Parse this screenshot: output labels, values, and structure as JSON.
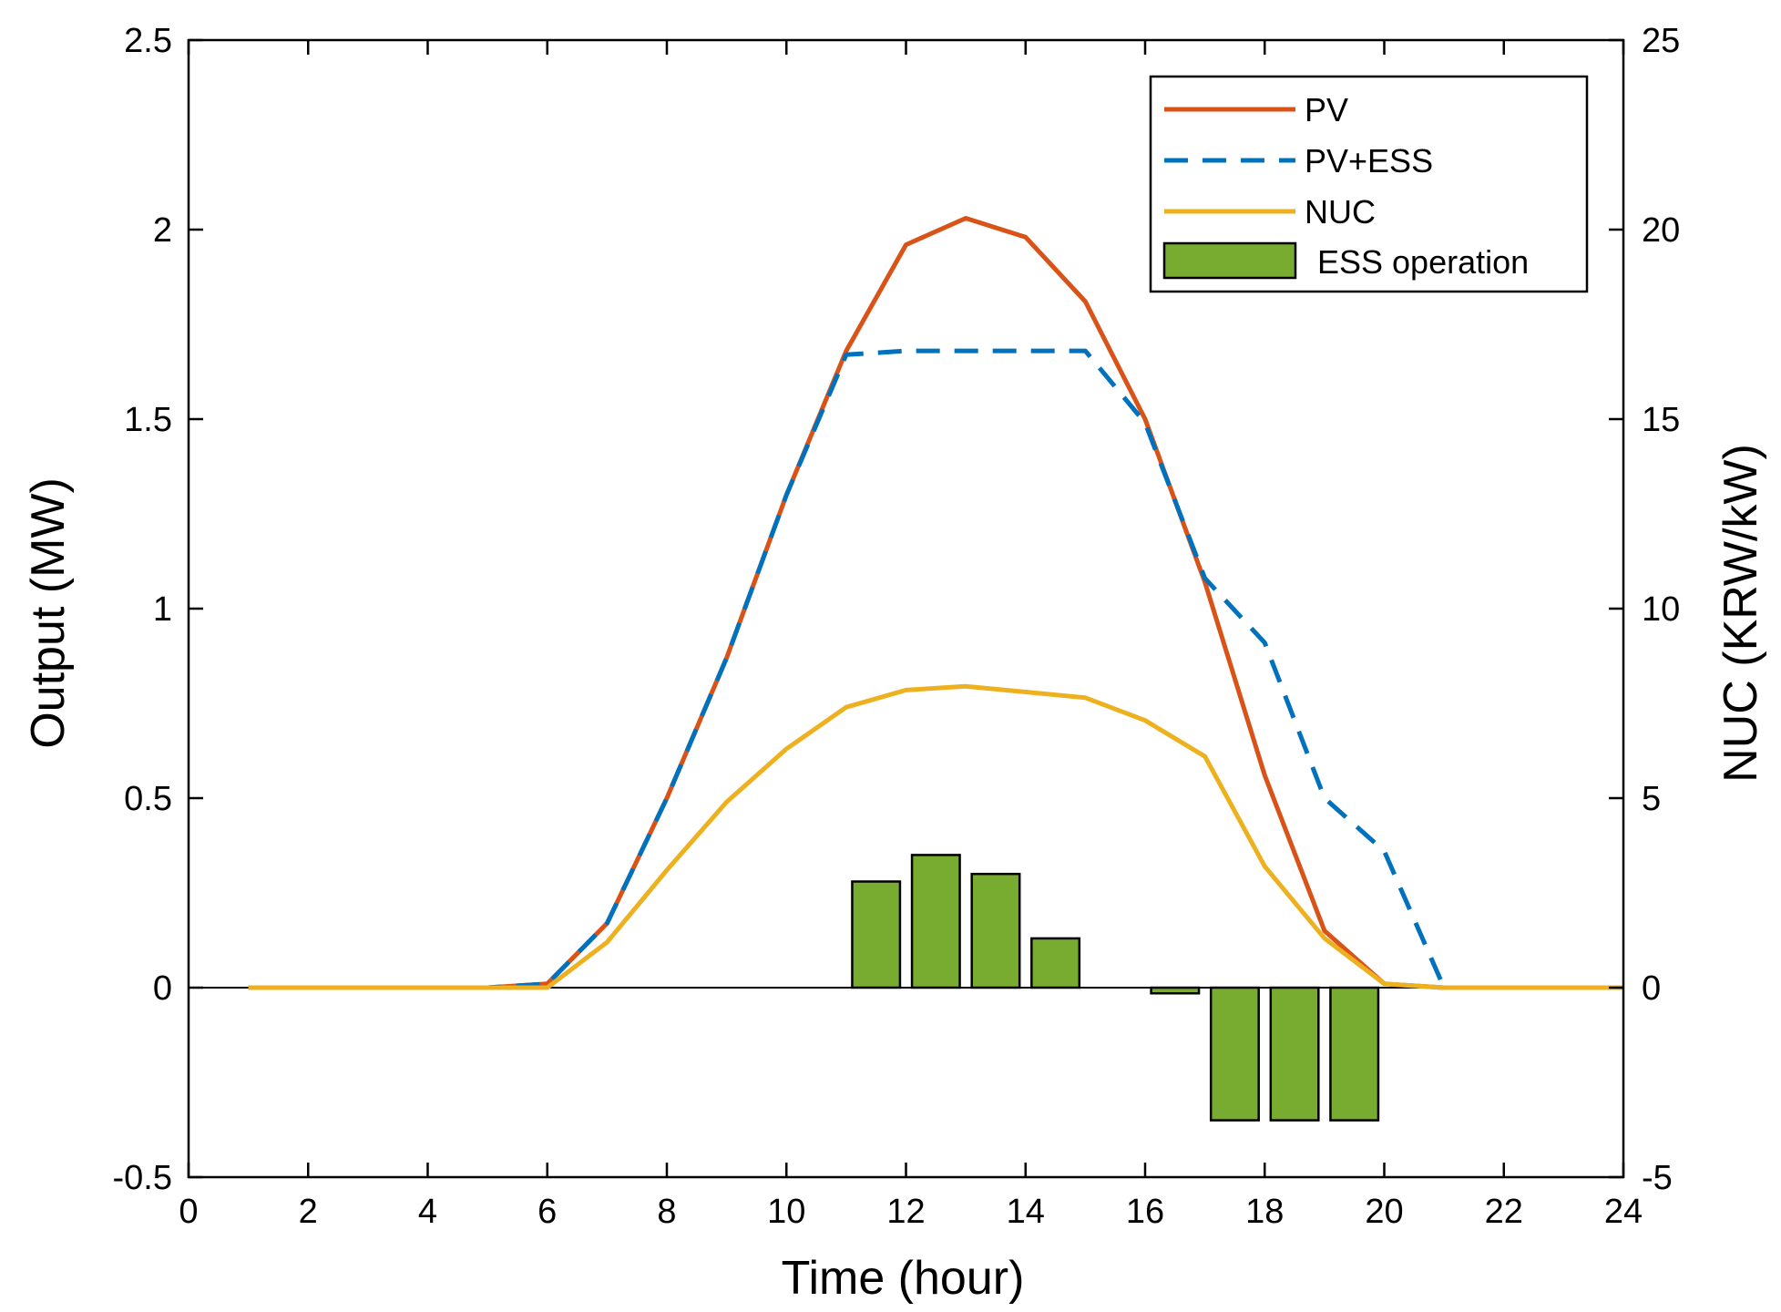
{
  "chart_data": {
    "type": "line",
    "xlabel": "Time (hour)",
    "ylabel_left": "Output (MW)",
    "ylabel_right": "NUC (KRW/kW)",
    "xlim": [
      0,
      24
    ],
    "ylim_left": [
      -0.5,
      2.5
    ],
    "ylim_right": [
      -5,
      25
    ],
    "xticks": [
      "0",
      "2",
      "4",
      "6",
      "8",
      "10",
      "12",
      "14",
      "16",
      "18",
      "20",
      "22",
      "24"
    ],
    "yticks_left": [
      "-0.5",
      "0",
      "0.5",
      "1",
      "1.5",
      "2",
      "2.5"
    ],
    "yticks_right": [
      "-5",
      "0",
      "5",
      "10",
      "15",
      "20",
      "25"
    ],
    "legend_position": "top-right",
    "series": [
      {
        "name": "PV",
        "axis": "left",
        "style": "solid",
        "color": "#D95319",
        "x": [
          1,
          2,
          3,
          4,
          5,
          6,
          7,
          8,
          9,
          10,
          11,
          12,
          13,
          14,
          15,
          16,
          17,
          18,
          19,
          20,
          21,
          22,
          23,
          24
        ],
        "values": [
          0,
          0,
          0,
          0,
          0,
          0.01,
          0.17,
          0.5,
          0.87,
          1.3,
          1.68,
          1.96,
          2.03,
          1.98,
          1.81,
          1.5,
          1.07,
          0.56,
          0.15,
          0.01,
          0,
          0,
          0,
          0
        ]
      },
      {
        "name": "PV+ESS",
        "axis": "left",
        "style": "dashed",
        "color": "#0072BD",
        "x": [
          1,
          2,
          3,
          4,
          5,
          6,
          7,
          8,
          9,
          10,
          11,
          12,
          13,
          14,
          15,
          16,
          17,
          18,
          19,
          20,
          21,
          22,
          23,
          24
        ],
        "values": [
          0,
          0,
          0,
          0,
          0,
          0.01,
          0.17,
          0.5,
          0.87,
          1.3,
          1.67,
          1.68,
          1.68,
          1.68,
          1.68,
          1.49,
          1.08,
          0.91,
          0.5,
          0.36,
          0,
          0,
          0,
          0
        ]
      },
      {
        "name": "NUC",
        "axis": "right",
        "style": "solid",
        "color": "#EDB120",
        "x": [
          1,
          2,
          3,
          4,
          5,
          6,
          7,
          8,
          9,
          10,
          11,
          12,
          13,
          14,
          15,
          16,
          17,
          18,
          19,
          20,
          21,
          22,
          23,
          24
        ],
        "values": [
          0,
          0,
          0,
          0,
          0,
          0,
          1.2,
          3.1,
          4.9,
          6.3,
          7.4,
          7.85,
          7.95,
          7.8,
          7.65,
          7.05,
          6.1,
          3.2,
          1.3,
          0.1,
          0,
          0,
          0,
          0
        ]
      }
    ],
    "bars": {
      "name": "ESS operation",
      "axis": "left",
      "color": "#77AC30",
      "x": [
        11.5,
        12.5,
        13.5,
        14.5,
        16.5,
        17.5,
        18.5,
        19.5
      ],
      "values": [
        0.28,
        0.35,
        0.3,
        0.13,
        -0.015,
        -0.35,
        -0.35,
        -0.35
      ]
    },
    "legend": [
      "PV",
      "PV+ESS",
      "NUC",
      "ESS operation"
    ]
  }
}
